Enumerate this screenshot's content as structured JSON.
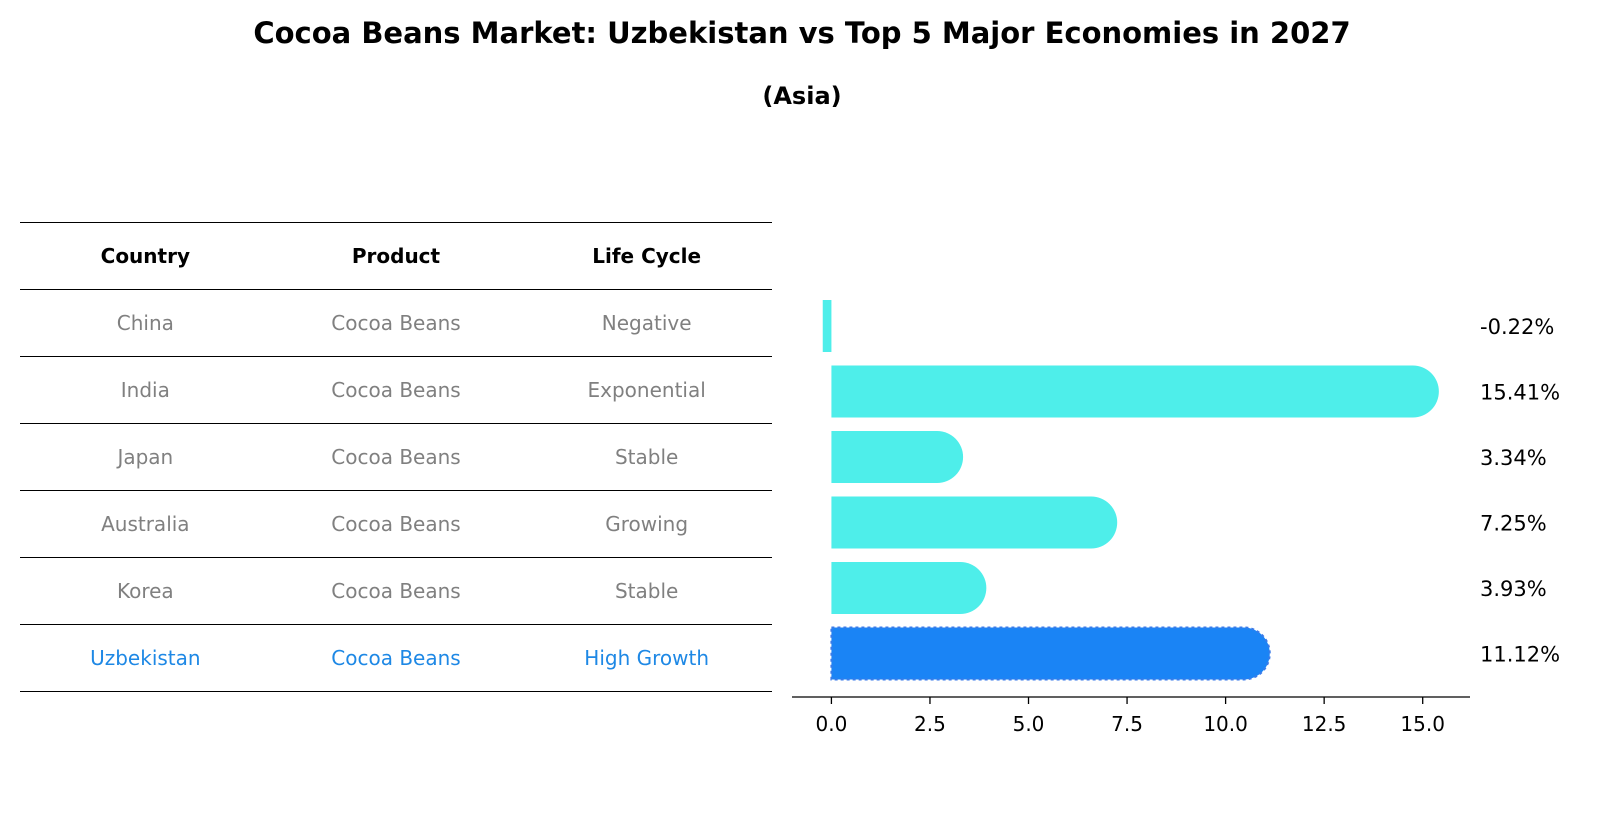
{
  "title": "Cocoa Beans Market: Uzbekistan vs Top 5 Major Economies in 2027",
  "subtitle": "(Asia)",
  "table": {
    "headers": [
      "Country",
      "Product",
      "Life Cycle"
    ],
    "rows": [
      {
        "country": "China",
        "product": "Cocoa Beans",
        "life_cycle": "Negative"
      },
      {
        "country": "India",
        "product": "Cocoa Beans",
        "life_cycle": "Exponential"
      },
      {
        "country": "Japan",
        "product": "Cocoa Beans",
        "life_cycle": "Stable"
      },
      {
        "country": "Australia",
        "product": "Cocoa Beans",
        "life_cycle": "Growing"
      },
      {
        "country": "Korea",
        "product": "Cocoa Beans",
        "life_cycle": "Stable"
      },
      {
        "country": "Uzbekistan",
        "product": "Cocoa Beans",
        "life_cycle": "High Growth"
      }
    ]
  },
  "chart_data": {
    "type": "bar",
    "orientation": "horizontal",
    "categories": [
      "China",
      "India",
      "Japan",
      "Australia",
      "Korea",
      "Uzbekistan"
    ],
    "values": [
      -0.22,
      15.41,
      3.34,
      7.25,
      3.93,
      11.12
    ],
    "value_labels": [
      "-0.22%",
      "15.41%",
      "3.34%",
      "7.25%",
      "3.93%",
      "11.12%"
    ],
    "highlight": "Uzbekistan",
    "xlim": [
      -1.0,
      16.2
    ],
    "xticks": [
      0.0,
      2.5,
      5.0,
      7.5,
      10.0,
      12.5,
      15.0
    ],
    "xtick_labels": [
      "0.0",
      "2.5",
      "5.0",
      "7.5",
      "10.0",
      "12.5",
      "15.0"
    ],
    "colors": {
      "default": "#4eeeea",
      "highlight": "#1a84f5"
    },
    "grid": false
  },
  "colors": {
    "table_text": "#808080",
    "table_highlight": "#1e88e5"
  }
}
